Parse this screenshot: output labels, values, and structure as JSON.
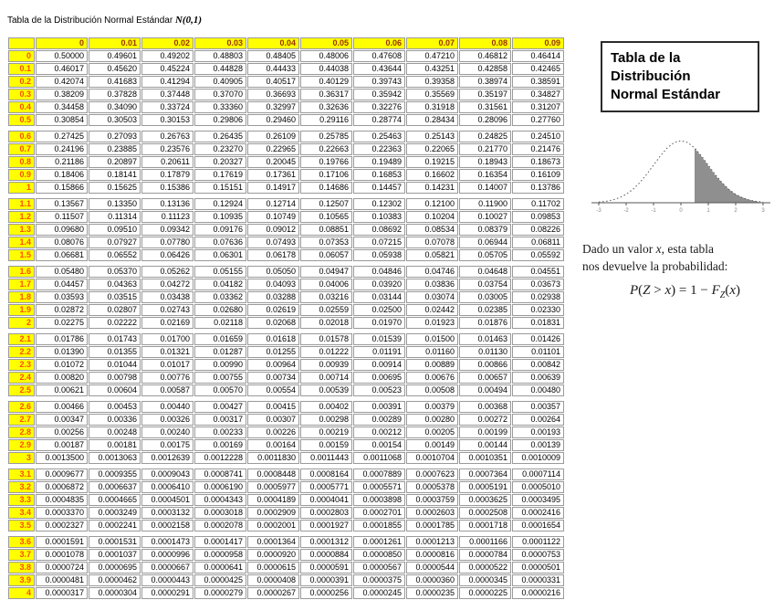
{
  "header": {
    "title": "Tabla de la Distribución Normal Estándar",
    "math": "N(0,1)"
  },
  "colors": {
    "header_bg": "#ffff00",
    "col_header_text": "#993300",
    "row_header_text": "#ff4d00",
    "grid": "#9a9a9a",
    "tail_fill": "#8f8f8f"
  },
  "table": {
    "col_headers": [
      "0",
      "0.01",
      "0.02",
      "0.03",
      "0.04",
      "0.05",
      "0.06",
      "0.07",
      "0.08",
      "0.09"
    ],
    "row_groups": [
      {
        "rows": [
          {
            "label": "0",
            "values": [
              "0.50000",
              "0.49601",
              "0.49202",
              "0.48803",
              "0.48405",
              "0.48006",
              "0.47608",
              "0.47210",
              "0.46812",
              "0.46414"
            ]
          },
          {
            "label": "0.1",
            "values": [
              "0.46017",
              "0.45620",
              "0.45224",
              "0.44828",
              "0.44433",
              "0.44038",
              "0.43644",
              "0.43251",
              "0.42858",
              "0.42465"
            ]
          },
          {
            "label": "0.2",
            "values": [
              "0.42074",
              "0.41683",
              "0.41294",
              "0.40905",
              "0.40517",
              "0.40129",
              "0.39743",
              "0.39358",
              "0.38974",
              "0.38591"
            ]
          },
          {
            "label": "0.3",
            "values": [
              "0.38209",
              "0.37828",
              "0.37448",
              "0.37070",
              "0.36693",
              "0.36317",
              "0.35942",
              "0.35569",
              "0.35197",
              "0.34827"
            ]
          },
          {
            "label": "0.4",
            "values": [
              "0.34458",
              "0.34090",
              "0.33724",
              "0.33360",
              "0.32997",
              "0.32636",
              "0.32276",
              "0.31918",
              "0.31561",
              "0.31207"
            ]
          },
          {
            "label": "0.5",
            "values": [
              "0.30854",
              "0.30503",
              "0.30153",
              "0.29806",
              "0.29460",
              "0.29116",
              "0.28774",
              "0.28434",
              "0.28096",
              "0.27760"
            ]
          }
        ]
      },
      {
        "rows": [
          {
            "label": "0.6",
            "values": [
              "0.27425",
              "0.27093",
              "0.26763",
              "0.26435",
              "0.26109",
              "0.25785",
              "0.25463",
              "0.25143",
              "0.24825",
              "0.24510"
            ]
          },
          {
            "label": "0.7",
            "values": [
              "0.24196",
              "0.23885",
              "0.23576",
              "0.23270",
              "0.22965",
              "0.22663",
              "0.22363",
              "0.22065",
              "0.21770",
              "0.21476"
            ]
          },
          {
            "label": "0.8",
            "values": [
              "0.21186",
              "0.20897",
              "0.20611",
              "0.20327",
              "0.20045",
              "0.19766",
              "0.19489",
              "0.19215",
              "0.18943",
              "0.18673"
            ]
          },
          {
            "label": "0.9",
            "values": [
              "0.18406",
              "0.18141",
              "0.17879",
              "0.17619",
              "0.17361",
              "0.17106",
              "0.16853",
              "0.16602",
              "0.16354",
              "0.16109"
            ]
          },
          {
            "label": "1",
            "values": [
              "0.15866",
              "0.15625",
              "0.15386",
              "0.15151",
              "0.14917",
              "0.14686",
              "0.14457",
              "0.14231",
              "0.14007",
              "0.13786"
            ]
          }
        ]
      },
      {
        "rows": [
          {
            "label": "1.1",
            "values": [
              "0.13567",
              "0.13350",
              "0.13136",
              "0.12924",
              "0.12714",
              "0.12507",
              "0.12302",
              "0.12100",
              "0.11900",
              "0.11702"
            ]
          },
          {
            "label": "1.2",
            "values": [
              "0.11507",
              "0.11314",
              "0.11123",
              "0.10935",
              "0.10749",
              "0.10565",
              "0.10383",
              "0.10204",
              "0.10027",
              "0.09853"
            ]
          },
          {
            "label": "1.3",
            "values": [
              "0.09680",
              "0.09510",
              "0.09342",
              "0.09176",
              "0.09012",
              "0.08851",
              "0.08692",
              "0.08534",
              "0.08379",
              "0.08226"
            ]
          },
          {
            "label": "1.4",
            "values": [
              "0.08076",
              "0.07927",
              "0.07780",
              "0.07636",
              "0.07493",
              "0.07353",
              "0.07215",
              "0.07078",
              "0.06944",
              "0.06811"
            ]
          },
          {
            "label": "1.5",
            "values": [
              "0.06681",
              "0.06552",
              "0.06426",
              "0.06301",
              "0.06178",
              "0.06057",
              "0.05938",
              "0.05821",
              "0.05705",
              "0.05592"
            ]
          }
        ]
      },
      {
        "rows": [
          {
            "label": "1.6",
            "values": [
              "0.05480",
              "0.05370",
              "0.05262",
              "0.05155",
              "0.05050",
              "0.04947",
              "0.04846",
              "0.04746",
              "0.04648",
              "0.04551"
            ]
          },
          {
            "label": "1.7",
            "values": [
              "0.04457",
              "0.04363",
              "0.04272",
              "0.04182",
              "0.04093",
              "0.04006",
              "0.03920",
              "0.03836",
              "0.03754",
              "0.03673"
            ]
          },
          {
            "label": "1.8",
            "values": [
              "0.03593",
              "0.03515",
              "0.03438",
              "0.03362",
              "0.03288",
              "0.03216",
              "0.03144",
              "0.03074",
              "0.03005",
              "0.02938"
            ]
          },
          {
            "label": "1.9",
            "values": [
              "0.02872",
              "0.02807",
              "0.02743",
              "0.02680",
              "0.02619",
              "0.02559",
              "0.02500",
              "0.02442",
              "0.02385",
              "0.02330"
            ]
          },
          {
            "label": "2",
            "values": [
              "0.02275",
              "0.02222",
              "0.02169",
              "0.02118",
              "0.02068",
              "0.02018",
              "0.01970",
              "0.01923",
              "0.01876",
              "0.01831"
            ]
          }
        ]
      },
      {
        "rows": [
          {
            "label": "2.1",
            "values": [
              "0.01786",
              "0.01743",
              "0.01700",
              "0.01659",
              "0.01618",
              "0.01578",
              "0.01539",
              "0.01500",
              "0.01463",
              "0.01426"
            ]
          },
          {
            "label": "2.2",
            "values": [
              "0.01390",
              "0.01355",
              "0.01321",
              "0.01287",
              "0.01255",
              "0.01222",
              "0.01191",
              "0.01160",
              "0.01130",
              "0.01101"
            ]
          },
          {
            "label": "2.3",
            "values": [
              "0.01072",
              "0.01044",
              "0.01017",
              "0.00990",
              "0.00964",
              "0.00939",
              "0.00914",
              "0.00889",
              "0.00866",
              "0.00842"
            ]
          },
          {
            "label": "2.4",
            "values": [
              "0.00820",
              "0.00798",
              "0.00776",
              "0.00755",
              "0.00734",
              "0.00714",
              "0.00695",
              "0.00676",
              "0.00657",
              "0.00639"
            ]
          },
          {
            "label": "2.5",
            "values": [
              "0.00621",
              "0.00604",
              "0.00587",
              "0.00570",
              "0.00554",
              "0.00539",
              "0.00523",
              "0.00508",
              "0.00494",
              "0.00480"
            ]
          }
        ]
      },
      {
        "rows": [
          {
            "label": "2.6",
            "values": [
              "0.00466",
              "0.00453",
              "0.00440",
              "0.00427",
              "0.00415",
              "0.00402",
              "0.00391",
              "0.00379",
              "0.00368",
              "0.00357"
            ]
          },
          {
            "label": "2.7",
            "values": [
              "0.00347",
              "0.00336",
              "0.00326",
              "0.00317",
              "0.00307",
              "0.00298",
              "0.00289",
              "0.00280",
              "0.00272",
              "0.00264"
            ]
          },
          {
            "label": "2.8",
            "values": [
              "0.00256",
              "0.00248",
              "0.00240",
              "0.00233",
              "0.00226",
              "0.00219",
              "0.00212",
              "0.00205",
              "0.00199",
              "0.00193"
            ]
          },
          {
            "label": "2.9",
            "values": [
              "0.00187",
              "0.00181",
              "0.00175",
              "0.00169",
              "0.00164",
              "0.00159",
              "0.00154",
              "0.00149",
              "0.00144",
              "0.00139"
            ]
          },
          {
            "label": "3",
            "values": [
              "0.0013500",
              "0.0013063",
              "0.0012639",
              "0.0012228",
              "0.0011830",
              "0.0011443",
              "0.0011068",
              "0.0010704",
              "0.0010351",
              "0.0010009"
            ]
          }
        ]
      },
      {
        "rows": [
          {
            "label": "3.1",
            "values": [
              "0.0009677",
              "0.0009355",
              "0.0009043",
              "0.0008741",
              "0.0008448",
              "0.0008164",
              "0.0007889",
              "0.0007623",
              "0.0007364",
              "0.0007114"
            ]
          },
          {
            "label": "3.2",
            "values": [
              "0.0006872",
              "0.0006637",
              "0.0006410",
              "0.0006190",
              "0.0005977",
              "0.0005771",
              "0.0005571",
              "0.0005378",
              "0.0005191",
              "0.0005010"
            ]
          },
          {
            "label": "3.3",
            "values": [
              "0.0004835",
              "0.0004665",
              "0.0004501",
              "0.0004343",
              "0.0004189",
              "0.0004041",
              "0.0003898",
              "0.0003759",
              "0.0003625",
              "0.0003495"
            ]
          },
          {
            "label": "3.4",
            "values": [
              "0.0003370",
              "0.0003249",
              "0.0003132",
              "0.0003018",
              "0.0002909",
              "0.0002803",
              "0.0002701",
              "0.0002603",
              "0.0002508",
              "0.0002416"
            ]
          },
          {
            "label": "3.5",
            "values": [
              "0.0002327",
              "0.0002241",
              "0.0002158",
              "0.0002078",
              "0.0002001",
              "0.0001927",
              "0.0001855",
              "0.0001785",
              "0.0001718",
              "0.0001654"
            ]
          }
        ]
      },
      {
        "rows": [
          {
            "label": "3.6",
            "values": [
              "0.0001591",
              "0.0001531",
              "0.0001473",
              "0.0001417",
              "0.0001364",
              "0.0001312",
              "0.0001261",
              "0.0001213",
              "0.0001166",
              "0.0001122"
            ]
          },
          {
            "label": "3.7",
            "values": [
              "0.0001078",
              "0.0001037",
              "0.0000996",
              "0.0000958",
              "0.0000920",
              "0.0000884",
              "0.0000850",
              "0.0000816",
              "0.0000784",
              "0.0000753"
            ]
          },
          {
            "label": "3.8",
            "values": [
              "0.0000724",
              "0.0000695",
              "0.0000667",
              "0.0000641",
              "0.0000615",
              "0.0000591",
              "0.0000567",
              "0.0000544",
              "0.0000522",
              "0.0000501"
            ]
          },
          {
            "label": "3.9",
            "values": [
              "0.0000481",
              "0.0000462",
              "0.0000443",
              "0.0000425",
              "0.0000408",
              "0.0000391",
              "0.0000375",
              "0.0000360",
              "0.0000345",
              "0.0000331"
            ]
          },
          {
            "label": "4",
            "values": [
              "0.0000317",
              "0.0000304",
              "0.0000291",
              "0.0000279",
              "0.0000267",
              "0.0000256",
              "0.0000245",
              "0.0000235",
              "0.0000225",
              "0.0000216"
            ]
          }
        ]
      }
    ]
  },
  "side": {
    "box_lines": [
      "Tabla de la",
      "Distribución",
      "Normal Estándar"
    ],
    "axis_ticks": [
      "-3",
      "-2",
      "-1",
      "0",
      "1",
      "2",
      "3"
    ],
    "caption": {
      "part1": "Dado un valor ",
      "x": "x",
      "part2": ", esta tabla",
      "part3": "nos devuelve la probabilidad:"
    },
    "formula_parts": {
      "p": "P",
      "lp1": "(",
      "z": "Z",
      "gt": " > ",
      "x1": "x",
      "rp1": ")",
      "eq": " = 1 − ",
      "f": "F",
      "fsub": "Z",
      "lp2": "(",
      "x2": "x",
      "rp2": ")"
    }
  }
}
